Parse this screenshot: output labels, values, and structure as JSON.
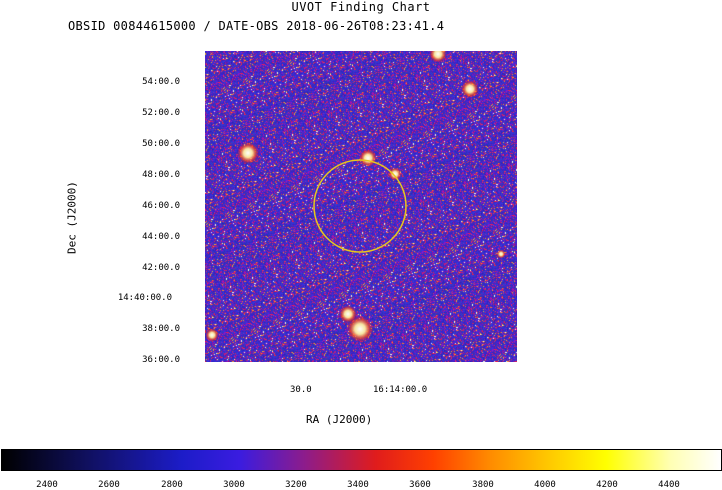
{
  "title": "UVOT Finding Chart",
  "subtitle": "OBSID 00844615000 / DATE-OBS 2018-06-26T08:23:41.4",
  "axes": {
    "ylabel": "Dec (J2000)",
    "xlabel": "RA (J2000)",
    "yticks": [
      "54:00.0",
      "52:00.0",
      "50:00.0",
      "48:00.0",
      "46:00.0",
      "44:00.0",
      "42:00.0",
      "14:40:00.0",
      "38:00.0",
      "36:00.0"
    ],
    "xticks": [
      "30.0",
      "16:14:00.0"
    ]
  },
  "colorbar": {
    "ticks": [
      "2400",
      "2600",
      "2800",
      "3000",
      "3200",
      "3400",
      "3600",
      "3800",
      "4000",
      "4200",
      "4400"
    ]
  },
  "colors": {
    "background_field": "#2f2fc8",
    "circle": "#e6c81e"
  }
}
